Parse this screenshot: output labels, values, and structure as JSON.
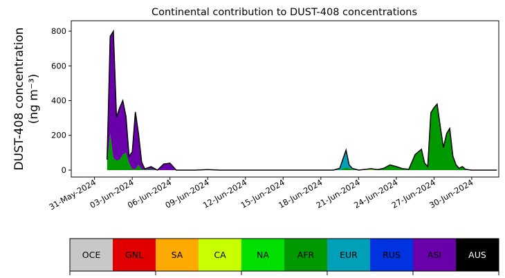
{
  "chart_data": {
    "type": "area",
    "stacked": true,
    "title": "Continental contribution to DUST-408 concentrations",
    "ylabel_line1": "DUST-408 concentration",
    "ylabel_line2": "(ng m⁻³)",
    "xlabel": "",
    "xlim": [
      -1.85,
      32.15
    ],
    "ylim": [
      -40,
      860
    ],
    "x_axis_dates": true,
    "x_ticks": [
      0,
      3,
      6,
      9,
      12,
      15,
      18,
      21,
      24,
      27,
      30
    ],
    "x_tick_labels": [
      "31-May-2024",
      "03-Jun-2024",
      "06-Jun-2024",
      "09-Jun-2024",
      "12-Jun-2024",
      "15-Jun-2024",
      "18-Jun-2024",
      "21-Jun-2024",
      "24-Jun-2024",
      "27-Jun-2024",
      "30-Jun-2024"
    ],
    "y_ticks": [
      0,
      200,
      400,
      600,
      800
    ],
    "y_tick_labels": [
      "0",
      "200",
      "400",
      "600",
      "800"
    ],
    "grid": false,
    "x": [
      "2024-06-01T00",
      "2024-06-01T06",
      "2024-06-01T12",
      "2024-06-01T18",
      "2024-06-02T00",
      "2024-06-02T06",
      "2024-06-02T12",
      "2024-06-02T18",
      "2024-06-03T00",
      "2024-06-03T06",
      "2024-06-03T12",
      "2024-06-03T18",
      "2024-06-04T00",
      "2024-06-04T12",
      "2024-06-05T00",
      "2024-06-05T12",
      "2024-06-06T00",
      "2024-06-06T12",
      "2024-06-07T00",
      "2024-06-08T00",
      "2024-06-09T00",
      "2024-06-10T00",
      "2024-06-11T00",
      "2024-06-12T00",
      "2024-06-13T00",
      "2024-06-14T00",
      "2024-06-15T00",
      "2024-06-16T00",
      "2024-06-17T00",
      "2024-06-18T00",
      "2024-06-19T00",
      "2024-06-19T12",
      "2024-06-20T00",
      "2024-06-20T06",
      "2024-06-20T12",
      "2024-06-21T00",
      "2024-06-22T00",
      "2024-06-22T12",
      "2024-06-23T00",
      "2024-06-23T12",
      "2024-06-24T00",
      "2024-06-24T12",
      "2024-06-25T00",
      "2024-06-25T12",
      "2024-06-26T00",
      "2024-06-26T06",
      "2024-06-26T12",
      "2024-06-26T18",
      "2024-06-27T00",
      "2024-06-27T06",
      "2024-06-27T12",
      "2024-06-27T18",
      "2024-06-28T00",
      "2024-06-28T06",
      "2024-06-28T12",
      "2024-06-28T18",
      "2024-06-29T00",
      "2024-06-29T06",
      "2024-06-29T12",
      "2024-06-29T18",
      "2024-06-30T00",
      "2024-06-30T12",
      "2024-07-01T00",
      "2024-07-01T12",
      "2024-07-02T00"
    ],
    "series": [
      {
        "name": "OCE",
        "color": "#c8c8c8",
        "values": [
          0,
          0,
          0,
          0,
          0,
          0,
          0,
          0,
          0,
          0,
          0,
          0,
          0,
          0,
          0,
          0,
          0,
          0,
          0,
          0,
          0,
          0,
          0,
          0,
          0,
          0,
          0,
          0,
          0,
          0,
          0,
          0,
          0,
          0,
          0,
          0,
          0,
          0,
          0,
          0,
          0,
          0,
          0,
          0,
          0,
          0,
          0,
          0,
          0,
          0,
          0,
          0,
          0,
          0,
          0,
          0,
          0,
          0,
          0,
          0,
          0,
          0,
          0,
          0,
          0
        ]
      },
      {
        "name": "GNL",
        "color": "#e00000",
        "values": [
          0,
          0,
          0,
          0,
          0,
          0,
          0,
          0,
          0,
          0,
          0,
          0,
          0,
          0,
          0,
          0,
          0,
          0,
          0,
          0,
          0,
          0,
          0,
          0,
          0,
          0,
          0,
          0,
          0,
          0,
          0,
          0,
          0,
          0,
          0,
          0,
          0,
          0,
          0,
          0,
          0,
          0,
          0,
          0,
          0,
          0,
          0,
          0,
          0,
          0,
          0,
          0,
          0,
          0,
          0,
          0,
          0,
          0,
          0,
          0,
          0,
          0,
          0,
          0,
          0
        ]
      },
      {
        "name": "SA",
        "color": "#ffaa00",
        "values": [
          0,
          0,
          0,
          0,
          0,
          0,
          0,
          0,
          0,
          0,
          0,
          0,
          0,
          0,
          0,
          0,
          0,
          0,
          0,
          0,
          0,
          0,
          0,
          0,
          0,
          0,
          0,
          0,
          0,
          0,
          0,
          0,
          0,
          0,
          0,
          0,
          0,
          0,
          0,
          0,
          0,
          0,
          0,
          0,
          0,
          0,
          0,
          0,
          0,
          0,
          0,
          0,
          0,
          0,
          0,
          0,
          0,
          0,
          0,
          0,
          0,
          0,
          0,
          0,
          0
        ]
      },
      {
        "name": "CA",
        "color": "#c8ff00",
        "values": [
          0,
          0,
          0,
          0,
          0,
          0,
          0,
          0,
          0,
          0,
          0,
          0,
          0,
          0,
          0,
          0,
          0,
          0,
          0,
          0,
          3,
          0,
          0,
          0,
          0,
          0,
          0,
          0,
          0,
          0,
          0,
          0,
          0,
          0,
          0,
          0,
          3,
          0,
          0,
          0,
          0,
          0,
          0,
          0,
          0,
          0,
          0,
          0,
          0,
          0,
          0,
          0,
          0,
          0,
          0,
          0,
          0,
          0,
          0,
          0,
          0,
          0,
          0,
          0,
          0
        ]
      },
      {
        "name": "NA",
        "color": "#00e000",
        "values": [
          0,
          0,
          0,
          0,
          0,
          0,
          0,
          0,
          0,
          0,
          0,
          0,
          0,
          0,
          0,
          0,
          0,
          0,
          0,
          0,
          0,
          0,
          0,
          0,
          0,
          0,
          0,
          0,
          0,
          0,
          0,
          0,
          0,
          0,
          0,
          0,
          0,
          0,
          0,
          0,
          0,
          0,
          0,
          0,
          0,
          0,
          0,
          0,
          0,
          0,
          0,
          0,
          0,
          0,
          0,
          0,
          0,
          0,
          0,
          0,
          0,
          0,
          0,
          0,
          0
        ]
      },
      {
        "name": "AFR",
        "color": "#009900",
        "values": [
          40,
          210,
          70,
          55,
          60,
          90,
          100,
          40,
          5,
          5,
          30,
          5,
          2,
          5,
          0,
          0,
          0,
          0,
          0,
          0,
          0,
          0,
          0,
          0,
          0,
          0,
          0,
          0,
          0,
          0,
          0,
          0,
          15,
          10,
          5,
          0,
          5,
          3,
          10,
          30,
          20,
          8,
          5,
          90,
          120,
          40,
          20,
          330,
          360,
          380,
          250,
          130,
          210,
          240,
          80,
          30,
          10,
          20,
          5,
          2,
          0,
          0,
          0,
          0,
          0
        ]
      },
      {
        "name": "EUR",
        "color": "#00a0b8",
        "values": [
          0,
          0,
          0,
          0,
          0,
          0,
          0,
          0,
          0,
          0,
          0,
          0,
          0,
          0,
          0,
          0,
          0,
          0,
          0,
          0,
          0,
          0,
          0,
          0,
          0,
          0,
          0,
          0,
          0,
          0,
          0,
          10,
          100,
          20,
          5,
          0,
          0,
          0,
          0,
          0,
          0,
          0,
          0,
          0,
          0,
          0,
          0,
          0,
          0,
          0,
          0,
          0,
          0,
          0,
          0,
          0,
          0,
          0,
          0,
          0,
          0,
          0,
          0,
          0,
          0
        ]
      },
      {
        "name": "RUS",
        "color": "#0033e0",
        "values": [
          0,
          0,
          0,
          0,
          0,
          0,
          0,
          0,
          0,
          0,
          0,
          0,
          0,
          0,
          0,
          0,
          0,
          0,
          0,
          0,
          0,
          0,
          0,
          0,
          0,
          0,
          0,
          0,
          0,
          0,
          0,
          0,
          0,
          0,
          0,
          0,
          0,
          0,
          0,
          0,
          0,
          0,
          0,
          0,
          0,
          0,
          0,
          0,
          0,
          0,
          0,
          0,
          0,
          0,
          0,
          0,
          0,
          0,
          0,
          0,
          0,
          0,
          0,
          0,
          0
        ]
      },
      {
        "name": "ASI",
        "color": "#6a00aa",
        "values": [
          20,
          560,
          730,
          250,
          300,
          310,
          210,
          40,
          100,
          330,
          180,
          40,
          5,
          15,
          0,
          35,
          40,
          0,
          0,
          0,
          0,
          0,
          0,
          0,
          0,
          0,
          0,
          0,
          0,
          0,
          0,
          0,
          0,
          0,
          0,
          0,
          0,
          0,
          0,
          0,
          0,
          0,
          0,
          0,
          0,
          0,
          0,
          0,
          0,
          0,
          0,
          0,
          0,
          0,
          0,
          0,
          0,
          0,
          0,
          0,
          0,
          0,
          0,
          0,
          0
        ]
      },
      {
        "name": "AUS",
        "color": "#000000",
        "values": [
          0,
          0,
          0,
          0,
          0,
          0,
          0,
          0,
          0,
          0,
          0,
          0,
          0,
          0,
          0,
          0,
          0,
          0,
          0,
          0,
          0,
          0,
          0,
          0,
          0,
          0,
          0,
          0,
          0,
          0,
          0,
          0,
          0,
          0,
          0,
          0,
          0,
          0,
          0,
          0,
          0,
          0,
          0,
          0,
          0,
          0,
          0,
          0,
          0,
          0,
          0,
          0,
          0,
          0,
          0,
          0,
          0,
          0,
          0,
          0,
          0,
          0,
          0,
          0,
          0
        ]
      }
    ],
    "total_line_color": "#000000"
  },
  "legend": {
    "items": [
      {
        "name": "OCE",
        "color": "#c8c8c8",
        "text_color": "#000000"
      },
      {
        "name": "GNL",
        "color": "#e00000",
        "text_color": "#000000"
      },
      {
        "name": "SA",
        "color": "#ffaa00",
        "text_color": "#000000"
      },
      {
        "name": "CA",
        "color": "#c8ff00",
        "text_color": "#000000"
      },
      {
        "name": "NA",
        "color": "#00e000",
        "text_color": "#000000"
      },
      {
        "name": "AFR",
        "color": "#009900",
        "text_color": "#000000"
      },
      {
        "name": "EUR",
        "color": "#00a0b8",
        "text_color": "#000000"
      },
      {
        "name": "RUS",
        "color": "#0033e0",
        "text_color": "#000000"
      },
      {
        "name": "ASI",
        "color": "#6a00aa",
        "text_color": "#000000"
      },
      {
        "name": "AUS",
        "color": "#000000",
        "text_color": "#ffffff"
      }
    ]
  }
}
